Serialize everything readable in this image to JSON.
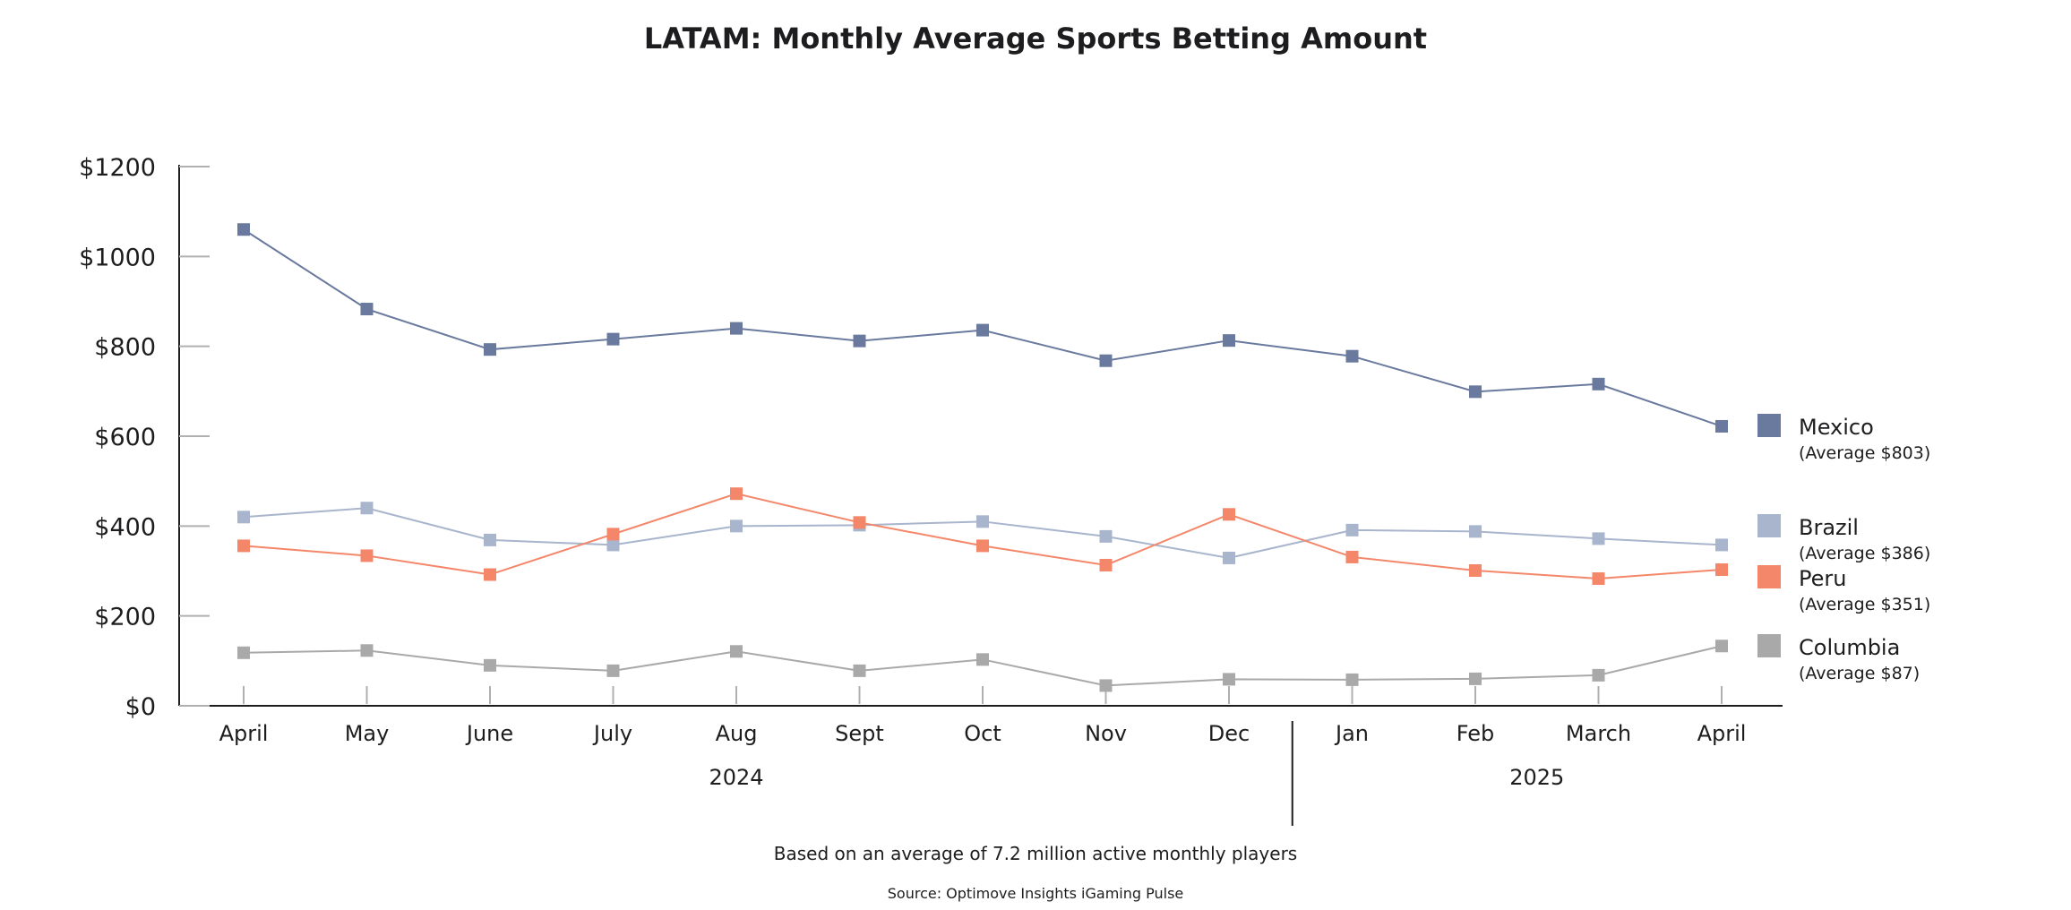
{
  "chart_data": {
    "type": "line",
    "title": "LATAM: Monthly Average Sports Betting Amount",
    "categories": [
      "April",
      "May",
      "June",
      "July",
      "Aug",
      "Sept",
      "Oct",
      "Nov",
      "Dec",
      "Jan",
      "Feb",
      "March",
      "April"
    ],
    "year_groups": [
      {
        "label": "2024",
        "start": 0,
        "end": 8
      },
      {
        "label": "2025",
        "start": 9,
        "end": 12
      }
    ],
    "y_ticks": [
      "$0",
      "$200",
      "$400",
      "$600",
      "$800",
      "$1000",
      "$1200"
    ],
    "y_tick_values": [
      0,
      200,
      400,
      600,
      800,
      1000,
      1200
    ],
    "ylim": [
      0,
      1200
    ],
    "xlabel": "",
    "ylabel": "",
    "grid": false,
    "legend_position": "right",
    "series": [
      {
        "name": "Mexico",
        "average_label": "(Average $803)",
        "color": "#6a7a9e",
        "values": [
          1060,
          883,
          793,
          816,
          840,
          812,
          836,
          768,
          813,
          778,
          699,
          716,
          622
        ]
      },
      {
        "name": "Brazil",
        "average_label": "(Average $386)",
        "color": "#a8b5cc",
        "values": [
          420,
          440,
          369,
          358,
          400,
          402,
          410,
          377,
          329,
          391,
          388,
          372,
          358
        ]
      },
      {
        "name": "Peru",
        "average_label": "(Average $351)",
        "color": "#f4876a",
        "values": [
          356,
          334,
          292,
          382,
          472,
          408,
          356,
          313,
          426,
          331,
          301,
          283,
          303
        ]
      },
      {
        "name": "Columbia",
        "average_label": "(Average $87)",
        "color": "#a9a9a9",
        "values": [
          118,
          123,
          90,
          78,
          121,
          78,
          103,
          45,
          59,
          58,
          60,
          68,
          133
        ]
      }
    ]
  },
  "footnote": "Based on an average of 7.2 million active monthly players",
  "source": "Source: Optimove Insights iGaming Pulse"
}
